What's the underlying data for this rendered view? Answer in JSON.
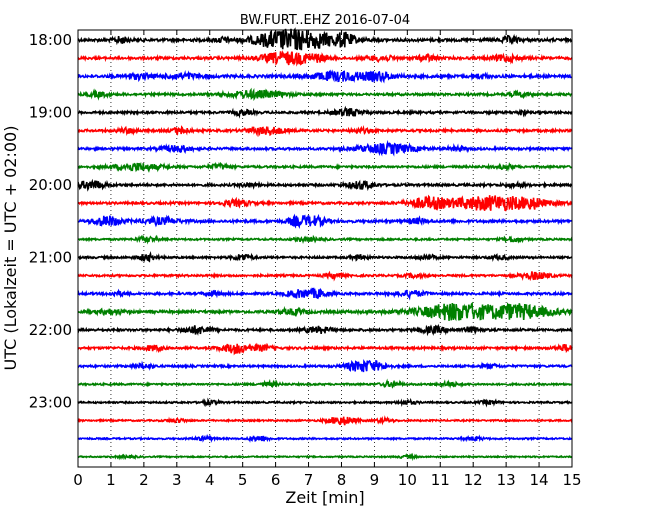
{
  "chart_data": {
    "type": "line",
    "subtype": "seismogram-helicorder",
    "title": "BW.FURT..EHZ 2016-07-04",
    "xlabel": "Zeit  [min]",
    "ylabel": "UTC (Lokalzeit = UTC + 02:00)",
    "xlim": [
      0,
      15
    ],
    "x_ticks": [
      "0",
      "1",
      "2",
      "3",
      "4",
      "5",
      "6",
      "7",
      "8",
      "9",
      "10",
      "11",
      "12",
      "13",
      "14",
      "15"
    ],
    "y_tick_labels": [
      "18:00",
      "19:00",
      "20:00",
      "21:00",
      "22:00",
      "23:00"
    ],
    "grid": "vertical dotted",
    "trace_interval_min": 15,
    "trace_colors": [
      "#000000",
      "#ff0000",
      "#0000ff",
      "#008000"
    ],
    "traces": [
      {
        "start": "18:00",
        "base_amp": 0.22,
        "events": [
          [
            6.1,
            0.6,
            0.9
          ],
          [
            7.0,
            0.8,
            1.2
          ],
          [
            8.1,
            0.2,
            0.7
          ],
          [
            1.3,
            0.15,
            0.5
          ],
          [
            4.4,
            0.15,
            0.4
          ],
          [
            13.1,
            0.2,
            0.5
          ]
        ]
      },
      {
        "start": "18:15",
        "base_amp": 0.2,
        "events": [
          [
            6.3,
            0.5,
            1.0
          ],
          [
            7.2,
            0.3,
            0.5
          ],
          [
            9.2,
            0.3,
            0.4
          ],
          [
            10.6,
            0.2,
            0.5
          ],
          [
            13.0,
            0.3,
            0.5
          ]
        ]
      },
      {
        "start": "18:30",
        "base_amp": 0.22,
        "events": [
          [
            8.0,
            0.7,
            0.7
          ],
          [
            9.2,
            0.3,
            0.5
          ],
          [
            3.2,
            0.4,
            0.4
          ],
          [
            1.8,
            0.3,
            0.4
          ],
          [
            12.2,
            0.2,
            0.3
          ]
        ]
      },
      {
        "start": "18:45",
        "base_amp": 0.18,
        "events": [
          [
            5.4,
            0.6,
            0.6
          ],
          [
            0.6,
            0.2,
            0.4
          ],
          [
            13.4,
            0.2,
            0.4
          ]
        ]
      },
      {
        "start": "19:00",
        "base_amp": 0.18,
        "events": [
          [
            8.2,
            0.3,
            0.6
          ],
          [
            5.0,
            0.2,
            0.4
          ],
          [
            13.5,
            0.1,
            0.4
          ]
        ]
      },
      {
        "start": "19:15",
        "base_amp": 0.18,
        "events": [
          [
            5.7,
            0.4,
            0.6
          ],
          [
            3.1,
            0.2,
            0.5
          ],
          [
            1.5,
            0.2,
            0.4
          ],
          [
            8.6,
            0.2,
            0.3
          ]
        ]
      },
      {
        "start": "19:30",
        "base_amp": 0.18,
        "events": [
          [
            9.4,
            0.6,
            0.8
          ],
          [
            3.0,
            0.3,
            0.5
          ],
          [
            11.5,
            0.2,
            0.3
          ]
        ]
      },
      {
        "start": "19:45",
        "base_amp": 0.17,
        "events": [
          [
            1.8,
            0.5,
            0.6
          ],
          [
            4.3,
            0.2,
            0.4
          ],
          [
            13.0,
            0.2,
            0.3
          ]
        ]
      },
      {
        "start": "20:00",
        "base_amp": 0.18,
        "events": [
          [
            0.4,
            0.3,
            0.7
          ],
          [
            8.6,
            0.3,
            0.6
          ],
          [
            5.2,
            0.2,
            0.3
          ],
          [
            13.3,
            0.2,
            0.3
          ]
        ]
      },
      {
        "start": "20:15",
        "base_amp": 0.18,
        "events": [
          [
            12.6,
            1.0,
            1.2
          ],
          [
            10.6,
            0.4,
            0.8
          ],
          [
            4.8,
            0.3,
            0.5
          ],
          [
            13.8,
            0.2,
            0.4
          ]
        ]
      },
      {
        "start": "20:30",
        "base_amp": 0.2,
        "events": [
          [
            0.9,
            0.3,
            0.8
          ],
          [
            7.1,
            0.3,
            0.8
          ],
          [
            6.6,
            0.2,
            0.5
          ],
          [
            2.5,
            0.4,
            0.5
          ],
          [
            10.3,
            0.2,
            0.4
          ]
        ]
      },
      {
        "start": "20:45",
        "base_amp": 0.14,
        "events": [
          [
            2.1,
            0.2,
            0.4
          ],
          [
            13.2,
            0.2,
            0.4
          ],
          [
            7.0,
            0.3,
            0.3
          ]
        ]
      },
      {
        "start": "21:00",
        "base_amp": 0.16,
        "events": [
          [
            2.1,
            0.2,
            0.5
          ],
          [
            5.0,
            0.2,
            0.5
          ],
          [
            8.5,
            0.2,
            0.3
          ],
          [
            10.6,
            0.2,
            0.4
          ],
          [
            12.8,
            0.2,
            0.3
          ]
        ]
      },
      {
        "start": "21:15",
        "base_amp": 0.16,
        "events": [
          [
            13.9,
            0.3,
            0.6
          ],
          [
            7.8,
            0.2,
            0.4
          ],
          [
            10.2,
            0.2,
            0.3
          ]
        ]
      },
      {
        "start": "21:30",
        "base_amp": 0.18,
        "events": [
          [
            7.2,
            0.3,
            0.7
          ],
          [
            6.6,
            0.2,
            0.5
          ],
          [
            10.1,
            0.3,
            0.5
          ],
          [
            1.2,
            0.2,
            0.3
          ],
          [
            4.1,
            0.2,
            0.3
          ]
        ]
      },
      {
        "start": "21:45",
        "base_amp": 0.2,
        "events": [
          [
            12.3,
            1.4,
            1.0
          ],
          [
            11.3,
            0.5,
            0.6
          ],
          [
            13.5,
            0.5,
            0.5
          ],
          [
            1.0,
            0.3,
            0.4
          ],
          [
            6.5,
            0.3,
            0.4
          ]
        ]
      },
      {
        "start": "22:00",
        "base_amp": 0.18,
        "events": [
          [
            3.6,
            0.3,
            0.6
          ],
          [
            7.3,
            0.3,
            0.5
          ],
          [
            10.8,
            0.3,
            0.5
          ],
          [
            12.0,
            0.2,
            0.4
          ]
        ]
      },
      {
        "start": "22:15",
        "base_amp": 0.18,
        "events": [
          [
            4.8,
            0.3,
            0.8
          ],
          [
            2.3,
            0.2,
            0.4
          ],
          [
            5.6,
            0.2,
            0.4
          ],
          [
            14.8,
            0.2,
            0.5
          ]
        ]
      },
      {
        "start": "22:30",
        "base_amp": 0.16,
        "events": [
          [
            8.5,
            0.3,
            0.7
          ],
          [
            9.0,
            0.3,
            0.6
          ],
          [
            2.0,
            0.2,
            0.4
          ],
          [
            12.5,
            0.2,
            0.3
          ]
        ]
      },
      {
        "start": "22:45",
        "base_amp": 0.14,
        "events": [
          [
            9.5,
            0.2,
            0.4
          ],
          [
            5.8,
            0.2,
            0.3
          ],
          [
            11.3,
            0.2,
            0.3
          ]
        ]
      },
      {
        "start": "23:00",
        "base_amp": 0.13,
        "events": [
          [
            10.0,
            0.2,
            0.3
          ],
          [
            12.5,
            0.2,
            0.3
          ],
          [
            4.0,
            0.2,
            0.3
          ]
        ]
      },
      {
        "start": "23:15",
        "base_amp": 0.12,
        "events": [
          [
            8.0,
            0.3,
            0.7
          ],
          [
            9.3,
            0.2,
            0.3
          ],
          [
            3.0,
            0.2,
            0.3
          ]
        ]
      },
      {
        "start": "23:30",
        "base_amp": 0.12,
        "events": [
          [
            5.5,
            0.2,
            0.5
          ],
          [
            12.0,
            0.2,
            0.3
          ],
          [
            3.8,
            0.2,
            0.3
          ]
        ]
      },
      {
        "start": "23:45",
        "base_amp": 0.1,
        "events": [
          [
            1.5,
            0.2,
            0.2
          ],
          [
            10.0,
            0.2,
            0.2
          ]
        ]
      }
    ]
  }
}
